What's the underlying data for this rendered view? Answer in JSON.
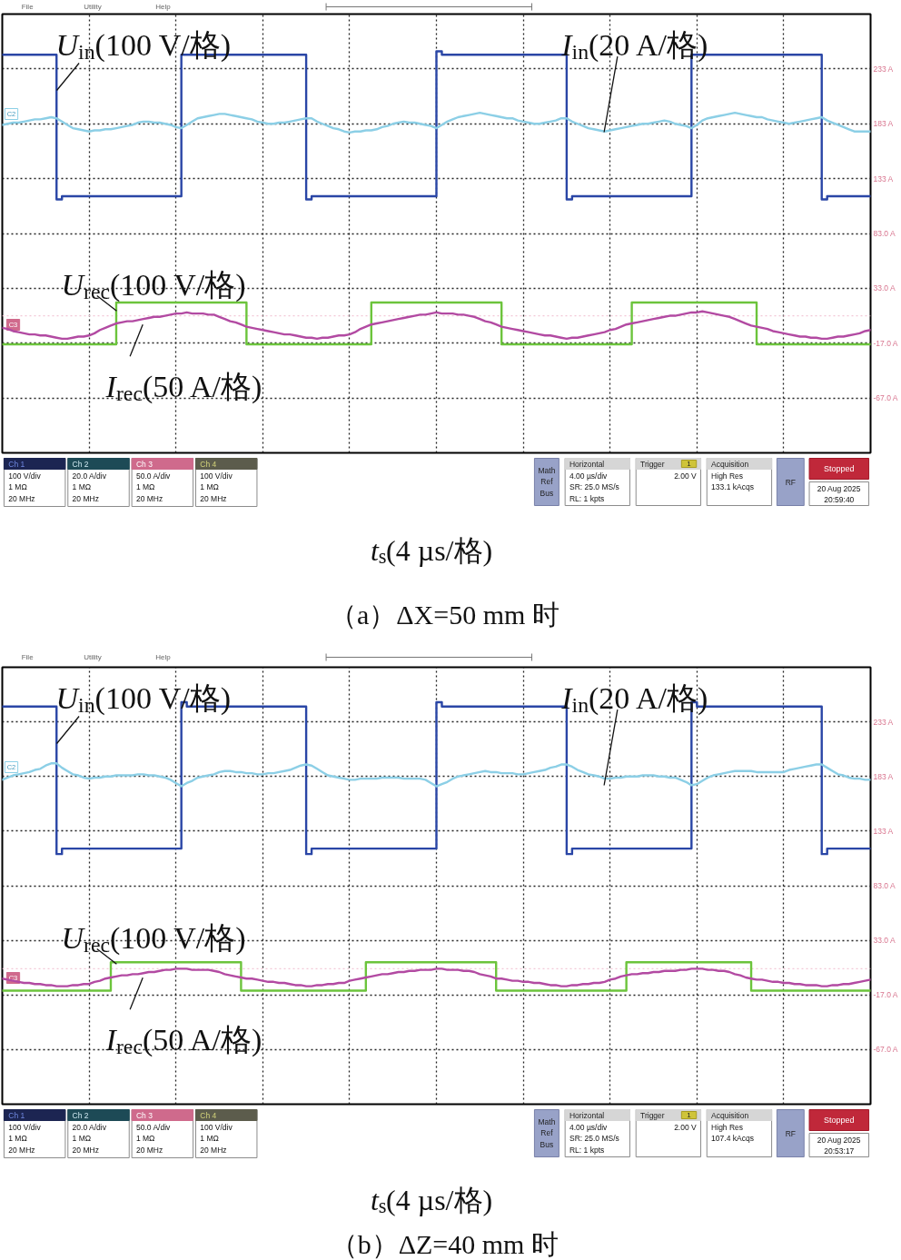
{
  "chart_data": [
    {
      "type": "line",
      "title": "（a）ΔX=50 mm 时",
      "xlabel": "t$_{s}$(4 µs/格)",
      "categories": [
        null,
        null,
        null,
        null,
        null,
        null,
        null,
        null,
        null,
        null,
        null,
        null,
        null,
        null,
        null,
        null,
        null,
        null,
        null,
        null,
        null,
        null,
        null,
        null,
        null,
        null,
        null,
        null,
        null,
        null,
        null,
        null,
        null,
        null,
        null,
        null,
        null,
        null,
        null,
        null,
        null,
        null,
        null,
        null,
        null,
        null,
        null,
        null,
        null,
        null,
        null,
        null,
        null,
        null,
        null,
        null,
        null,
        null,
        null,
        null,
        null,
        null,
        null,
        null,
        null,
        null,
        null,
        null,
        null,
        null,
        null,
        null,
        null,
        null,
        null,
        null,
        null,
        null,
        null,
        null,
        null,
        null,
        null,
        null,
        null,
        null,
        null,
        null,
        null,
        null,
        null,
        null,
        null,
        null,
        null,
        null,
        null,
        null,
        null,
        null,
        null,
        null,
        null,
        null,
        null,
        null,
        null,
        null,
        null,
        null,
        null,
        null,
        null,
        null,
        null,
        null,
        null,
        null,
        null,
        null,
        null,
        null,
        null,
        null,
        null,
        null,
        null,
        null,
        null,
        null,
        null,
        null,
        null,
        null,
        null,
        null,
        null,
        null,
        null,
        null,
        null,
        null,
        null,
        null,
        null,
        null,
        null,
        null,
        null,
        null,
        null,
        null,
        null,
        null,
        null,
        null,
        null,
        null,
        null,
        null,
        null
      ],
      "ylim": [
        -117,
        283
      ],
      "yticks": [
        {
          "value": 233,
          "label": "233 A"
        },
        {
          "value": 183,
          "label": "183 A"
        },
        {
          "value": 133,
          "label": "133 A"
        },
        {
          "value": 83,
          "label": "83.0 A"
        },
        {
          "value": 33,
          "label": "33.0 A"
        },
        {
          "value": -17,
          "label": "-17.0 A"
        },
        {
          "value": -67,
          "label": "-67.0 A"
        }
      ],
      "tick_labels": "y",
      "grid": true,
      "ref_lines": [
        {
          "axis": "y",
          "value": 8,
          "color": "#f2c6d6",
          "line_style": "dotted"
        }
      ],
      "series": [
        {
          "name": "U$_{in}$(100 V/格)",
          "type": "step",
          "color": "#2a46a6",
          "values": [
            246,
            246,
            246,
            246,
            246,
            246,
            246,
            246,
            246,
            246,
            114,
            117,
            117,
            117,
            117,
            117,
            117,
            117,
            117,
            117,
            117,
            117,
            117,
            117,
            117,
            117,
            117,
            117,
            117,
            117,
            117,
            117,
            117,
            246,
            246,
            246,
            246,
            246,
            246,
            246,
            246,
            246,
            246,
            246,
            246,
            246,
            246,
            246,
            246,
            246,
            246,
            246,
            246,
            246,
            246,
            246,
            114,
            117,
            117,
            117,
            117,
            117,
            117,
            117,
            117,
            117,
            117,
            117,
            117,
            117,
            117,
            117,
            117,
            117,
            117,
            117,
            117,
            117,
            117,
            117,
            249,
            246,
            246,
            246,
            246,
            246,
            246,
            246,
            246,
            246,
            246,
            246,
            246,
            246,
            246,
            246,
            246,
            246,
            246,
            246,
            246,
            246,
            246,
            246,
            114,
            117,
            117,
            117,
            117,
            117,
            117,
            117,
            117,
            117,
            117,
            117,
            117,
            117,
            117,
            117,
            117,
            117,
            117,
            117,
            117,
            117,
            117,
            246,
            246,
            246,
            246,
            246,
            246,
            246,
            246,
            246,
            246,
            246,
            246,
            246,
            246,
            246,
            246,
            246,
            246,
            246,
            246,
            246,
            246,
            246,
            246,
            114,
            117,
            117,
            117,
            117,
            117,
            117,
            117,
            117,
            117
          ]
        },
        {
          "name": "I$_{in}$(20 A/格)",
          "color": "#8ccfe6",
          "values": [
            182,
            183,
            184,
            184,
            185,
            186,
            187,
            187,
            188,
            189,
            188,
            185,
            182,
            179,
            178,
            177,
            176,
            177,
            177,
            178,
            178,
            179,
            180,
            181,
            182,
            184,
            185,
            185,
            184,
            184,
            183,
            182,
            180,
            179,
            182,
            185,
            188,
            189,
            190,
            191,
            192,
            192,
            191,
            190,
            189,
            188,
            187,
            185,
            184,
            183,
            183,
            184,
            184,
            185,
            186,
            187,
            188,
            188,
            185,
            183,
            181,
            179,
            178,
            176,
            175,
            176,
            176,
            177,
            177,
            178,
            180,
            181,
            183,
            184,
            185,
            184,
            184,
            183,
            182,
            181,
            179,
            182,
            185,
            187,
            189,
            190,
            191,
            192,
            193,
            192,
            191,
            190,
            189,
            188,
            188,
            186,
            185,
            184,
            183,
            183,
            184,
            185,
            186,
            188,
            188,
            185,
            183,
            181,
            179,
            178,
            177,
            176,
            177,
            178,
            179,
            180,
            181,
            182,
            183,
            183,
            184,
            185,
            186,
            185,
            183,
            182,
            181,
            179,
            182,
            186,
            188,
            189,
            190,
            191,
            192,
            193,
            192,
            191,
            190,
            189,
            189,
            187,
            186,
            185,
            184,
            183,
            184,
            185,
            186,
            187,
            188,
            189,
            186,
            184,
            182,
            180,
            178,
            176,
            176,
            176,
            176
          ]
        },
        {
          "name": "U$_{rec}$(100 V/格)",
          "type": "step",
          "color": "#6cc43c",
          "values": [
            -18,
            -18,
            -18,
            -18,
            -18,
            -18,
            -18,
            -18,
            -18,
            -18,
            -18,
            -18,
            -18,
            -18,
            -18,
            -18,
            -18,
            -18,
            -18,
            -18,
            -18,
            20,
            20,
            20,
            20,
            20,
            20,
            20,
            20,
            20,
            20,
            20,
            20,
            20,
            20,
            20,
            20,
            20,
            20,
            20,
            20,
            20,
            20,
            20,
            20,
            -18,
            -18,
            -18,
            -18,
            -18,
            -18,
            -18,
            -18,
            -18,
            -18,
            -18,
            -18,
            -18,
            -18,
            -18,
            -18,
            -18,
            -18,
            -18,
            -18,
            -18,
            -18,
            -18,
            20,
            20,
            20,
            20,
            20,
            20,
            20,
            20,
            20,
            20,
            20,
            20,
            20,
            20,
            20,
            20,
            20,
            20,
            20,
            20,
            20,
            20,
            20,
            20,
            -18,
            -18,
            -18,
            -18,
            -18,
            -18,
            -18,
            -18,
            -18,
            -18,
            -18,
            -18,
            -18,
            -18,
            -18,
            -18,
            -18,
            -18,
            -18,
            -18,
            -18,
            -18,
            -18,
            -18,
            20,
            20,
            20,
            20,
            20,
            20,
            20,
            20,
            20,
            20,
            20,
            20,
            20,
            20,
            20,
            20,
            20,
            20,
            20,
            20,
            20,
            20,
            20,
            -18,
            -18,
            -18,
            -18,
            -18,
            -18,
            -18,
            -18,
            -18,
            -18,
            -18,
            -18,
            -18,
            -18,
            -18,
            -18,
            -18,
            -18,
            -18,
            -18,
            -18,
            -18
          ]
        },
        {
          "name": "I$_{rec}$(50 A/格)",
          "color": "#b24aa2",
          "values": [
            -3,
            -4,
            -6,
            -7,
            -8,
            -9,
            -9,
            -10,
            -10,
            -11,
            -12,
            -13,
            -13,
            -12,
            -11,
            -11,
            -10,
            -8,
            -5,
            -3,
            -1,
            1,
            2,
            3,
            3,
            4,
            5,
            6,
            7,
            7,
            8,
            9,
            10,
            10,
            11,
            10,
            10,
            10,
            9,
            9,
            7,
            5,
            3,
            2,
            0,
            -2,
            -3,
            -4,
            -5,
            -6,
            -7,
            -8,
            -9,
            -9,
            -10,
            -11,
            -12,
            -12,
            -13,
            -12,
            -12,
            -11,
            -10,
            -10,
            -9,
            -7,
            -4,
            -2,
            0,
            1,
            2,
            3,
            4,
            5,
            6,
            7,
            8,
            9,
            9,
            10,
            11,
            10,
            10,
            10,
            9,
            9,
            8,
            7,
            5,
            3,
            2,
            0,
            -2,
            -3,
            -4,
            -5,
            -6,
            -7,
            -8,
            -9,
            -10,
            -10,
            -11,
            -12,
            -13,
            -12,
            -12,
            -11,
            -10,
            -9,
            -8,
            -7,
            -5,
            -4,
            -2,
            0,
            1,
            2,
            3,
            4,
            5,
            6,
            7,
            8,
            8,
            9,
            10,
            11,
            11,
            12,
            11,
            10,
            9,
            8,
            7,
            5,
            3,
            1,
            -1,
            -2,
            -3,
            -4,
            -6,
            -7,
            -8,
            -9,
            -10,
            -11,
            -11,
            -12,
            -12,
            -13,
            -13,
            -12,
            -11,
            -11,
            -10,
            -9,
            -8,
            -6,
            -5
          ]
        }
      ],
      "annotations": [
        "File",
        "Utility",
        "Help",
        "C2",
        "C3",
        "Ch 1",
        "100 V/div",
        "1 MΩ",
        "20 MHz",
        "Ch 2",
        "20.0 A/div",
        "1 MΩ",
        "20 MHz",
        "Ch 3",
        "50.0 A/div",
        "1 MΩ",
        "20 MHz",
        "Ch 4",
        "100 V/div",
        "1 MΩ",
        "20 MHz",
        "Math",
        "Ref",
        "Bus",
        "Horizontal",
        "4.00 µs/div",
        "SR: 25.0 MS/s",
        "RL: 1 kpts",
        "Trigger",
        "1",
        "2.00 V",
        "Acquisition",
        "High Res",
        "133.1 kAcqs",
        "RF",
        "Stopped",
        "20 Aug 2025",
        "20:59:40"
      ]
    },
    {
      "type": "line",
      "title": "（b）ΔZ=40 mm 时",
      "xlabel": "t$_{s}$(4 µs/格)",
      "categories": [
        null,
        null,
        null,
        null,
        null,
        null,
        null,
        null,
        null,
        null,
        null,
        null,
        null,
        null,
        null,
        null,
        null,
        null,
        null,
        null,
        null,
        null,
        null,
        null,
        null,
        null,
        null,
        null,
        null,
        null,
        null,
        null,
        null,
        null,
        null,
        null,
        null,
        null,
        null,
        null,
        null,
        null,
        null,
        null,
        null,
        null,
        null,
        null,
        null,
        null,
        null,
        null,
        null,
        null,
        null,
        null,
        null,
        null,
        null,
        null,
        null,
        null,
        null,
        null,
        null,
        null,
        null,
        null,
        null,
        null,
        null,
        null,
        null,
        null,
        null,
        null,
        null,
        null,
        null,
        null,
        null,
        null,
        null,
        null,
        null,
        null,
        null,
        null,
        null,
        null,
        null,
        null,
        null,
        null,
        null,
        null,
        null,
        null,
        null,
        null,
        null,
        null,
        null,
        null,
        null,
        null,
        null,
        null,
        null,
        null,
        null,
        null,
        null,
        null,
        null,
        null,
        null,
        null,
        null,
        null,
        null,
        null,
        null,
        null,
        null,
        null,
        null,
        null,
        null,
        null,
        null,
        null,
        null,
        null,
        null,
        null,
        null,
        null,
        null,
        null,
        null,
        null,
        null,
        null,
        null,
        null,
        null,
        null,
        null,
        null,
        null,
        null,
        null,
        null,
        null,
        null,
        null,
        null,
        null,
        null,
        null
      ],
      "ylim": [
        -117,
        283
      ],
      "yticks": [
        {
          "value": 233,
          "label": "233 A"
        },
        {
          "value": 183,
          "label": "183 A"
        },
        {
          "value": 133,
          "label": "133 A"
        },
        {
          "value": 83,
          "label": "83.0 A"
        },
        {
          "value": 33,
          "label": "33.0 A"
        },
        {
          "value": -17,
          "label": "-17.0 A"
        },
        {
          "value": -67,
          "label": "-67.0 A"
        }
      ],
      "tick_labels": "y",
      "grid": true,
      "ref_lines": [
        {
          "axis": "y",
          "value": 7,
          "color": "#f2c6d6",
          "line_style": "dotted"
        }
      ],
      "series": [
        {
          "name": "U$_{in}$(100 V/格)",
          "type": "step",
          "color": "#2a46a6",
          "values": [
            247,
            247,
            247,
            247,
            247,
            247,
            247,
            247,
            247,
            247,
            112,
            117,
            117,
            117,
            117,
            117,
            117,
            117,
            117,
            117,
            117,
            117,
            117,
            117,
            117,
            117,
            117,
            117,
            117,
            117,
            117,
            117,
            117,
            251,
            247,
            247,
            247,
            247,
            247,
            247,
            247,
            247,
            247,
            247,
            247,
            247,
            247,
            247,
            247,
            247,
            247,
            247,
            247,
            247,
            247,
            247,
            112,
            117,
            117,
            117,
            117,
            117,
            117,
            117,
            117,
            117,
            117,
            117,
            117,
            117,
            117,
            117,
            117,
            117,
            117,
            117,
            117,
            117,
            117,
            117,
            251,
            247,
            247,
            247,
            247,
            247,
            247,
            247,
            247,
            247,
            247,
            247,
            247,
            247,
            247,
            247,
            247,
            247,
            247,
            247,
            247,
            247,
            247,
            247,
            112,
            117,
            117,
            117,
            117,
            117,
            117,
            117,
            117,
            117,
            117,
            117,
            117,
            117,
            117,
            117,
            117,
            117,
            117,
            117,
            117,
            117,
            117,
            251,
            247,
            247,
            247,
            247,
            247,
            247,
            247,
            247,
            247,
            247,
            247,
            247,
            247,
            247,
            247,
            247,
            247,
            247,
            247,
            247,
            247,
            247,
            247,
            112,
            117,
            117,
            117,
            117,
            117,
            117,
            117,
            117,
            117
          ]
        },
        {
          "name": "I$_{in}$(20 A/格)",
          "color": "#8ccfe6",
          "values": [
            180,
            182,
            184,
            185,
            186,
            187,
            189,
            190,
            193,
            195,
            195,
            191,
            188,
            185,
            184,
            182,
            181,
            182,
            182,
            183,
            183,
            184,
            184,
            184,
            184,
            185,
            185,
            184,
            184,
            183,
            182,
            180,
            177,
            174,
            177,
            179,
            182,
            183,
            184,
            185,
            187,
            188,
            188,
            187,
            187,
            186,
            186,
            185,
            185,
            186,
            186,
            187,
            188,
            189,
            191,
            193,
            194,
            193,
            190,
            187,
            184,
            183,
            182,
            181,
            180,
            180,
            181,
            181,
            181,
            181,
            182,
            182,
            182,
            182,
            181,
            181,
            181,
            181,
            180,
            177,
            174,
            176,
            178,
            181,
            183,
            184,
            185,
            186,
            187,
            188,
            187,
            187,
            186,
            186,
            186,
            185,
            185,
            186,
            187,
            188,
            189,
            191,
            192,
            194,
            194,
            192,
            189,
            187,
            185,
            184,
            183,
            181,
            181,
            182,
            182,
            183,
            183,
            183,
            184,
            184,
            184,
            183,
            183,
            182,
            182,
            180,
            178,
            175,
            176,
            179,
            182,
            184,
            185,
            186,
            187,
            188,
            188,
            188,
            188,
            187,
            187,
            187,
            187,
            187,
            187,
            189,
            190,
            191,
            192,
            193,
            194,
            194,
            191,
            188,
            185,
            184,
            182,
            181,
            181,
            180,
            180
          ]
        },
        {
          "name": "U$_{rec}$(100 V/格)",
          "type": "step",
          "color": "#6cc43c",
          "values": [
            -13,
            -13,
            -13,
            -13,
            -13,
            -13,
            -13,
            -13,
            -13,
            -13,
            -13,
            -13,
            -13,
            -13,
            -13,
            -13,
            -13,
            -13,
            -13,
            -13,
            13,
            13,
            13,
            13,
            13,
            13,
            13,
            13,
            13,
            13,
            13,
            13,
            13,
            13,
            13,
            13,
            13,
            13,
            13,
            13,
            13,
            13,
            13,
            13,
            -13,
            -13,
            -13,
            -13,
            -13,
            -13,
            -13,
            -13,
            -13,
            -13,
            -13,
            -13,
            -13,
            -13,
            -13,
            -13,
            -13,
            -13,
            -13,
            -13,
            -13,
            -13,
            -13,
            13,
            13,
            13,
            13,
            13,
            13,
            13,
            13,
            13,
            13,
            13,
            13,
            13,
            13,
            13,
            13,
            13,
            13,
            13,
            13,
            13,
            13,
            13,
            13,
            -13,
            -13,
            -13,
            -13,
            -13,
            -13,
            -13,
            -13,
            -13,
            -13,
            -13,
            -13,
            -13,
            -13,
            -13,
            -13,
            -13,
            -13,
            -13,
            -13,
            -13,
            -13,
            -13,
            -13,
            13,
            13,
            13,
            13,
            13,
            13,
            13,
            13,
            13,
            13,
            13,
            13,
            13,
            13,
            13,
            13,
            13,
            13,
            13,
            13,
            13,
            13,
            13,
            -13,
            -13,
            -13,
            -13,
            -13,
            -13,
            -13,
            -13,
            -13,
            -13,
            -13,
            -13,
            -13,
            -13,
            -13,
            -13,
            -13,
            -13,
            -13,
            -13,
            -13,
            -13,
            -13
          ]
        },
        {
          "name": "I$_{rec}$(50 A/格)",
          "color": "#b24aa2",
          "values": [
            -2,
            -3,
            -4,
            -5,
            -6,
            -6,
            -7,
            -7,
            -8,
            -8,
            -9,
            -9,
            -9,
            -8,
            -8,
            -7,
            -7,
            -5,
            -4,
            -2,
            -1,
            0,
            1,
            1,
            2,
            2,
            3,
            4,
            4,
            5,
            6,
            6,
            7,
            7,
            7,
            6,
            6,
            6,
            6,
            5,
            4,
            2,
            1,
            0,
            -1,
            -2,
            -2,
            -3,
            -4,
            -5,
            -5,
            -6,
            -6,
            -7,
            -8,
            -8,
            -9,
            -9,
            -8,
            -8,
            -7,
            -7,
            -6,
            -6,
            -4,
            -3,
            -2,
            -1,
            0,
            1,
            2,
            2,
            3,
            4,
            4,
            5,
            5,
            6,
            6,
            6,
            7,
            7,
            6,
            6,
            6,
            5,
            5,
            4,
            2,
            1,
            0,
            -2,
            -2,
            -3,
            -4,
            -4,
            -5,
            -5,
            -6,
            -6,
            -7,
            -8,
            -8,
            -9,
            -9,
            -8,
            -8,
            -7,
            -7,
            -6,
            -6,
            -5,
            -3,
            -2,
            0,
            1,
            2,
            2,
            3,
            3,
            4,
            4,
            5,
            5,
            5,
            6,
            6,
            7,
            7,
            7,
            6,
            6,
            5,
            5,
            4,
            2,
            1,
            -1,
            -2,
            -3,
            -3,
            -4,
            -5,
            -5,
            -6,
            -6,
            -7,
            -7,
            -8,
            -8,
            -8,
            -9,
            -9,
            -8,
            -8,
            -7,
            -7,
            -6,
            -5,
            -4,
            -3
          ]
        }
      ],
      "annotations": [
        "File",
        "Utility",
        "Help",
        "C2",
        "C3",
        "Ch 1",
        "100 V/div",
        "1 MΩ",
        "20 MHz",
        "Ch 2",
        "20.0 A/div",
        "1 MΩ",
        "20 MHz",
        "Ch 3",
        "50.0 A/div",
        "1 MΩ",
        "20 MHz",
        "Ch 4",
        "100 V/div",
        "1 MΩ",
        "20 MHz",
        "Math",
        "Ref",
        "Bus",
        "Horizontal",
        "4.00 µs/div",
        "SR: 25.0 MS/s",
        "RL: 1 kpts",
        "Trigger",
        "1",
        "2.00 V",
        "Acquisition",
        "High Res",
        "107.4 kAcqs",
        "RF",
        "Stopped",
        "20 Aug 2025",
        "20:53:17"
      ]
    }
  ]
}
